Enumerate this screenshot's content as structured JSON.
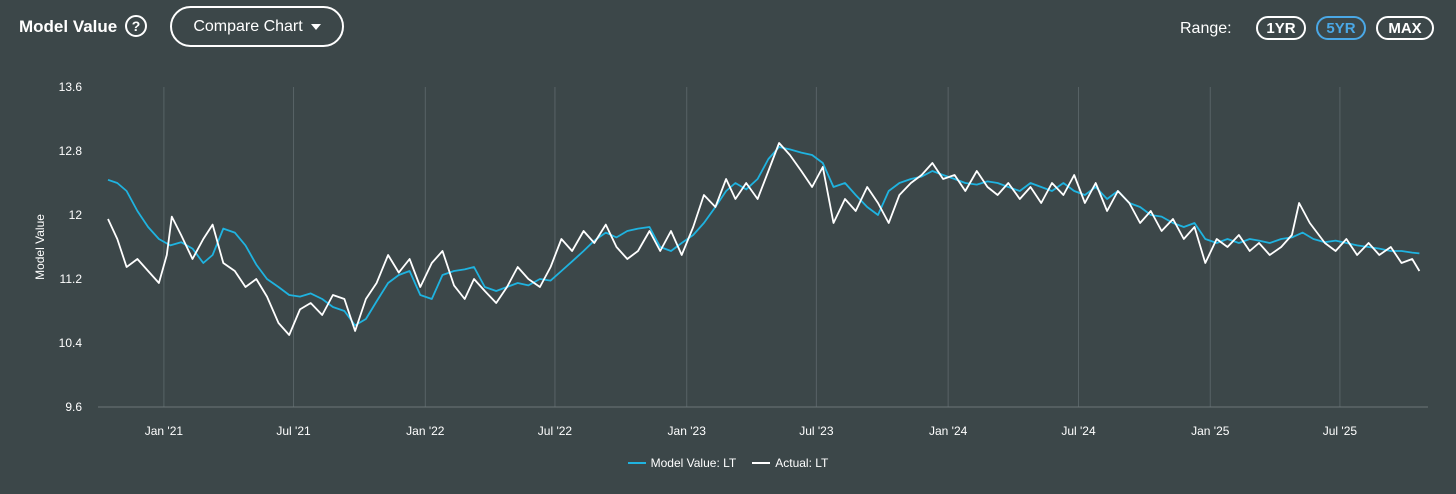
{
  "header": {
    "title": "Model Value",
    "help_icon": "?",
    "compare_label": "Compare Chart",
    "range_label": "Range:",
    "ranges": [
      "1YR",
      "5YR",
      "MAX"
    ],
    "active_range": "5YR"
  },
  "colors": {
    "background": "#3c4749",
    "model": "#1fb3e0",
    "actual": "#ffffff",
    "grid": "#586366",
    "active_range": "#4aa8e6"
  },
  "chart_data": {
    "type": "line",
    "ylabel": "Model Value",
    "ylim": [
      9.6,
      13.6
    ],
    "yticks": [
      "13.6",
      "12.8",
      "12",
      "11.2",
      "10.4",
      "9.6"
    ],
    "xlim": [
      "2020-10-01",
      "2025-11-01"
    ],
    "xticks": [
      {
        "label": "Jan '21",
        "date": "2021-01-01"
      },
      {
        "label": "Jul '21",
        "date": "2021-07-01"
      },
      {
        "label": "Jan '22",
        "date": "2022-01-01"
      },
      {
        "label": "Jul '22",
        "date": "2022-07-01"
      },
      {
        "label": "Jan '23",
        "date": "2023-01-01"
      },
      {
        "label": "Jul '23",
        "date": "2023-07-01"
      },
      {
        "label": "Jan '24",
        "date": "2024-01-01"
      },
      {
        "label": "Jul '24",
        "date": "2024-07-01"
      },
      {
        "label": "Jan '25",
        "date": "2025-01-01"
      },
      {
        "label": "Jul '25",
        "date": "2025-07-01"
      }
    ],
    "grid": "vertical",
    "legend_position": "bottom-center",
    "series": [
      {
        "name": "Model Value: LT",
        "color": "#1fb3e0",
        "points": [
          [
            "2020-10-15",
            12.44
          ],
          [
            "2020-10-28",
            12.4
          ],
          [
            "2020-11-10",
            12.3
          ],
          [
            "2020-11-25",
            12.05
          ],
          [
            "2020-12-10",
            11.85
          ],
          [
            "2020-12-25",
            11.7
          ],
          [
            "2021-01-10",
            11.62
          ],
          [
            "2021-01-25",
            11.66
          ],
          [
            "2021-02-10",
            11.58
          ],
          [
            "2021-02-25",
            11.4
          ],
          [
            "2021-03-10",
            11.5
          ],
          [
            "2021-03-25",
            11.83
          ],
          [
            "2021-04-10",
            11.78
          ],
          [
            "2021-04-25",
            11.62
          ],
          [
            "2021-05-10",
            11.38
          ],
          [
            "2021-05-25",
            11.2
          ],
          [
            "2021-06-10",
            11.1
          ],
          [
            "2021-06-25",
            11.0
          ],
          [
            "2021-07-10",
            10.98
          ],
          [
            "2021-07-25",
            11.02
          ],
          [
            "2021-08-10",
            10.95
          ],
          [
            "2021-08-25",
            10.85
          ],
          [
            "2021-09-10",
            10.8
          ],
          [
            "2021-09-25",
            10.62
          ],
          [
            "2021-10-10",
            10.7
          ],
          [
            "2021-10-25",
            10.92
          ],
          [
            "2021-11-10",
            11.15
          ],
          [
            "2021-11-25",
            11.25
          ],
          [
            "2021-12-10",
            11.3
          ],
          [
            "2021-12-25",
            11.0
          ],
          [
            "2022-01-10",
            10.95
          ],
          [
            "2022-01-25",
            11.25
          ],
          [
            "2022-02-10",
            11.3
          ],
          [
            "2022-02-25",
            11.32
          ],
          [
            "2022-03-10",
            11.35
          ],
          [
            "2022-03-25",
            11.1
          ],
          [
            "2022-04-10",
            11.05
          ],
          [
            "2022-04-25",
            11.1
          ],
          [
            "2022-05-10",
            11.15
          ],
          [
            "2022-05-25",
            11.12
          ],
          [
            "2022-06-10",
            11.2
          ],
          [
            "2022-06-25",
            11.18
          ],
          [
            "2022-07-10",
            11.3
          ],
          [
            "2022-07-25",
            11.42
          ],
          [
            "2022-08-10",
            11.55
          ],
          [
            "2022-08-25",
            11.68
          ],
          [
            "2022-09-10",
            11.78
          ],
          [
            "2022-09-25",
            11.72
          ],
          [
            "2022-10-10",
            11.8
          ],
          [
            "2022-10-25",
            11.83
          ],
          [
            "2022-11-10",
            11.85
          ],
          [
            "2022-11-25",
            11.6
          ],
          [
            "2022-12-10",
            11.55
          ],
          [
            "2022-12-25",
            11.65
          ],
          [
            "2023-01-10",
            11.75
          ],
          [
            "2023-01-25",
            11.9
          ],
          [
            "2023-02-10",
            12.1
          ],
          [
            "2023-02-25",
            12.3
          ],
          [
            "2023-03-10",
            12.4
          ],
          [
            "2023-03-25",
            12.32
          ],
          [
            "2023-04-10",
            12.45
          ],
          [
            "2023-04-25",
            12.7
          ],
          [
            "2023-05-10",
            12.85
          ],
          [
            "2023-05-25",
            12.82
          ],
          [
            "2023-06-10",
            12.78
          ],
          [
            "2023-06-25",
            12.75
          ],
          [
            "2023-07-10",
            12.65
          ],
          [
            "2023-07-25",
            12.35
          ],
          [
            "2023-08-10",
            12.4
          ],
          [
            "2023-08-25",
            12.25
          ],
          [
            "2023-09-10",
            12.1
          ],
          [
            "2023-09-25",
            12.0
          ],
          [
            "2023-10-10",
            12.3
          ],
          [
            "2023-10-25",
            12.4
          ],
          [
            "2023-11-10",
            12.45
          ],
          [
            "2023-11-25",
            12.48
          ],
          [
            "2023-12-10",
            12.55
          ],
          [
            "2023-12-25",
            12.5
          ],
          [
            "2024-01-10",
            12.45
          ],
          [
            "2024-01-25",
            12.4
          ],
          [
            "2024-02-10",
            12.38
          ],
          [
            "2024-02-25",
            12.42
          ],
          [
            "2024-03-10",
            12.4
          ],
          [
            "2024-03-25",
            12.35
          ],
          [
            "2024-04-10",
            12.3
          ],
          [
            "2024-04-25",
            12.4
          ],
          [
            "2024-05-10",
            12.35
          ],
          [
            "2024-05-25",
            12.3
          ],
          [
            "2024-06-10",
            12.4
          ],
          [
            "2024-06-25",
            12.3
          ],
          [
            "2024-07-10",
            12.25
          ],
          [
            "2024-07-25",
            12.35
          ],
          [
            "2024-08-10",
            12.2
          ],
          [
            "2024-08-25",
            12.3
          ],
          [
            "2024-09-10",
            12.15
          ],
          [
            "2024-09-25",
            12.1
          ],
          [
            "2024-10-10",
            12.0
          ],
          [
            "2024-10-25",
            11.98
          ],
          [
            "2024-11-10",
            11.9
          ],
          [
            "2024-11-25",
            11.85
          ],
          [
            "2024-12-10",
            11.9
          ],
          [
            "2024-12-25",
            11.7
          ],
          [
            "2025-01-10",
            11.65
          ],
          [
            "2025-01-25",
            11.7
          ],
          [
            "2025-02-10",
            11.65
          ],
          [
            "2025-02-25",
            11.7
          ],
          [
            "2025-03-10",
            11.68
          ],
          [
            "2025-03-25",
            11.65
          ],
          [
            "2025-04-10",
            11.7
          ],
          [
            "2025-04-25",
            11.72
          ],
          [
            "2025-05-10",
            11.78
          ],
          [
            "2025-05-25",
            11.7
          ],
          [
            "2025-06-10",
            11.66
          ],
          [
            "2025-06-25",
            11.68
          ],
          [
            "2025-07-10",
            11.65
          ],
          [
            "2025-07-25",
            11.62
          ],
          [
            "2025-08-10",
            11.6
          ],
          [
            "2025-08-25",
            11.58
          ],
          [
            "2025-09-10",
            11.55
          ],
          [
            "2025-09-25",
            11.55
          ],
          [
            "2025-10-10",
            11.53
          ],
          [
            "2025-10-20",
            11.52
          ]
        ]
      },
      {
        "name": "Actual: LT",
        "color": "#ffffff",
        "points": [
          [
            "2020-10-15",
            11.95
          ],
          [
            "2020-10-28",
            11.7
          ],
          [
            "2020-11-10",
            11.35
          ],
          [
            "2020-11-25",
            11.45
          ],
          [
            "2020-12-10",
            11.3
          ],
          [
            "2020-12-25",
            11.15
          ],
          [
            "2021-01-05",
            11.5
          ],
          [
            "2021-01-12",
            11.98
          ],
          [
            "2021-01-25",
            11.75
          ],
          [
            "2021-02-10",
            11.45
          ],
          [
            "2021-02-25",
            11.7
          ],
          [
            "2021-03-10",
            11.88
          ],
          [
            "2021-03-25",
            11.4
          ],
          [
            "2021-04-10",
            11.3
          ],
          [
            "2021-04-25",
            11.1
          ],
          [
            "2021-05-10",
            11.2
          ],
          [
            "2021-05-25",
            10.98
          ],
          [
            "2021-06-10",
            10.65
          ],
          [
            "2021-06-25",
            10.5
          ],
          [
            "2021-07-10",
            10.82
          ],
          [
            "2021-07-25",
            10.9
          ],
          [
            "2021-08-10",
            10.75
          ],
          [
            "2021-08-25",
            11.0
          ],
          [
            "2021-09-10",
            10.95
          ],
          [
            "2021-09-25",
            10.55
          ],
          [
            "2021-10-10",
            10.95
          ],
          [
            "2021-10-25",
            11.15
          ],
          [
            "2021-11-10",
            11.5
          ],
          [
            "2021-11-25",
            11.28
          ],
          [
            "2021-12-10",
            11.45
          ],
          [
            "2021-12-25",
            11.1
          ],
          [
            "2022-01-10",
            11.4
          ],
          [
            "2022-01-25",
            11.55
          ],
          [
            "2022-02-10",
            11.12
          ],
          [
            "2022-02-25",
            10.95
          ],
          [
            "2022-03-10",
            11.2
          ],
          [
            "2022-03-25",
            11.05
          ],
          [
            "2022-04-10",
            10.9
          ],
          [
            "2022-04-25",
            11.1
          ],
          [
            "2022-05-10",
            11.35
          ],
          [
            "2022-05-25",
            11.2
          ],
          [
            "2022-06-10",
            11.1
          ],
          [
            "2022-06-25",
            11.35
          ],
          [
            "2022-07-10",
            11.7
          ],
          [
            "2022-07-25",
            11.55
          ],
          [
            "2022-08-10",
            11.8
          ],
          [
            "2022-08-25",
            11.65
          ],
          [
            "2022-09-10",
            11.88
          ],
          [
            "2022-09-25",
            11.6
          ],
          [
            "2022-10-10",
            11.45
          ],
          [
            "2022-10-25",
            11.55
          ],
          [
            "2022-11-10",
            11.8
          ],
          [
            "2022-11-25",
            11.55
          ],
          [
            "2022-12-10",
            11.8
          ],
          [
            "2022-12-25",
            11.5
          ],
          [
            "2023-01-10",
            11.85
          ],
          [
            "2023-01-25",
            12.25
          ],
          [
            "2023-02-10",
            12.1
          ],
          [
            "2023-02-25",
            12.45
          ],
          [
            "2023-03-10",
            12.2
          ],
          [
            "2023-03-25",
            12.4
          ],
          [
            "2023-04-10",
            12.2
          ],
          [
            "2023-04-25",
            12.55
          ],
          [
            "2023-05-10",
            12.9
          ],
          [
            "2023-05-25",
            12.75
          ],
          [
            "2023-06-10",
            12.55
          ],
          [
            "2023-06-25",
            12.35
          ],
          [
            "2023-07-10",
            12.6
          ],
          [
            "2023-07-25",
            11.9
          ],
          [
            "2023-08-10",
            12.2
          ],
          [
            "2023-08-25",
            12.05
          ],
          [
            "2023-09-10",
            12.35
          ],
          [
            "2023-09-25",
            12.15
          ],
          [
            "2023-10-10",
            11.9
          ],
          [
            "2023-10-25",
            12.25
          ],
          [
            "2023-11-10",
            12.4
          ],
          [
            "2023-11-25",
            12.5
          ],
          [
            "2023-12-10",
            12.65
          ],
          [
            "2023-12-25",
            12.45
          ],
          [
            "2024-01-10",
            12.5
          ],
          [
            "2024-01-25",
            12.3
          ],
          [
            "2024-02-10",
            12.55
          ],
          [
            "2024-02-25",
            12.35
          ],
          [
            "2024-03-10",
            12.25
          ],
          [
            "2024-03-25",
            12.4
          ],
          [
            "2024-04-10",
            12.2
          ],
          [
            "2024-04-25",
            12.35
          ],
          [
            "2024-05-10",
            12.15
          ],
          [
            "2024-05-25",
            12.4
          ],
          [
            "2024-06-10",
            12.25
          ],
          [
            "2024-06-25",
            12.5
          ],
          [
            "2024-07-10",
            12.15
          ],
          [
            "2024-07-25",
            12.4
          ],
          [
            "2024-08-10",
            12.05
          ],
          [
            "2024-08-25",
            12.3
          ],
          [
            "2024-09-10",
            12.15
          ],
          [
            "2024-09-25",
            11.9
          ],
          [
            "2024-10-10",
            12.05
          ],
          [
            "2024-10-25",
            11.8
          ],
          [
            "2024-11-10",
            11.95
          ],
          [
            "2024-11-25",
            11.7
          ],
          [
            "2024-12-10",
            11.85
          ],
          [
            "2024-12-25",
            11.4
          ],
          [
            "2025-01-10",
            11.7
          ],
          [
            "2025-01-25",
            11.6
          ],
          [
            "2025-02-10",
            11.75
          ],
          [
            "2025-02-25",
            11.55
          ],
          [
            "2025-03-10",
            11.65
          ],
          [
            "2025-03-25",
            11.5
          ],
          [
            "2025-04-10",
            11.6
          ],
          [
            "2025-04-25",
            11.75
          ],
          [
            "2025-05-05",
            12.15
          ],
          [
            "2025-05-20",
            11.9
          ],
          [
            "2025-06-10",
            11.65
          ],
          [
            "2025-06-25",
            11.55
          ],
          [
            "2025-07-10",
            11.7
          ],
          [
            "2025-07-25",
            11.5
          ],
          [
            "2025-08-10",
            11.65
          ],
          [
            "2025-08-25",
            11.5
          ],
          [
            "2025-09-10",
            11.6
          ],
          [
            "2025-09-25",
            11.4
          ],
          [
            "2025-10-10",
            11.45
          ],
          [
            "2025-10-20",
            11.3
          ]
        ]
      }
    ]
  }
}
